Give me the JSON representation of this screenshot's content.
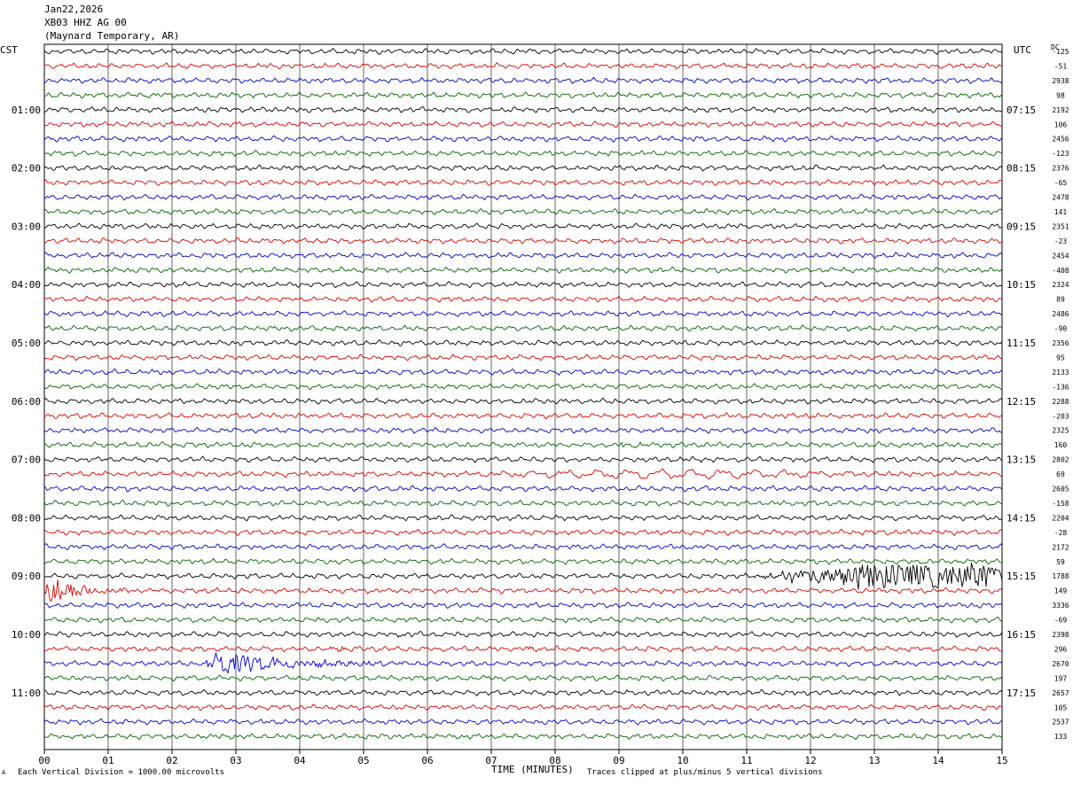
{
  "header": {
    "date": "Jan22,2026",
    "station": "XB03 HHZ AG 00",
    "location": "(Maynard Temporary, AR)"
  },
  "left_timezone": "CST",
  "right_timezone": "UTC",
  "dc_header": "DC",
  "footer": {
    "scale_note": "Each Vertical Division = 1000.00 microvolts",
    "clip_note": "Traces clipped at plus/minus 5 vertical divisions",
    "corner_mark": "A"
  },
  "colors": {
    "cycle": [
      "#000000",
      "#dd0000",
      "#0000cc",
      "#006600"
    ],
    "grid": "#000000",
    "background": "#ffffff"
  },
  "chart_data": {
    "type": "line",
    "title": "",
    "xlabel": "TIME (MINUTES)",
    "ylabel": "",
    "xlim": [
      0,
      15
    ],
    "x_ticks": [
      "00",
      "01",
      "02",
      "03",
      "04",
      "05",
      "06",
      "07",
      "08",
      "09",
      "10",
      "11",
      "12",
      "13",
      "14",
      "15"
    ],
    "grid": true,
    "trace_count": 48,
    "left_hour_labels": [
      "01:00",
      "02:00",
      "03:00",
      "04:00",
      "05:00",
      "06:00",
      "07:00",
      "08:00",
      "09:00",
      "10:00",
      "11:00"
    ],
    "right_hour_labels": [
      "07:15",
      "08:15",
      "09:15",
      "10:15",
      "11:15",
      "12:15",
      "13:15",
      "14:15",
      "15:15",
      "16:15",
      "17:15"
    ],
    "dc_offsets": [
      "-125",
      "-51",
      "2938",
      "98",
      "2192",
      "106",
      "2456",
      "-123",
      "2376",
      "-65",
      "2478",
      "141",
      "2351",
      "-23",
      "2454",
      "-408",
      "2324",
      "89",
      "2486",
      "-90",
      "2356",
      "95",
      "2133",
      "-136",
      "2288",
      "-203",
      "2325",
      "160",
      "2802",
      "69",
      "2605",
      "-158",
      "2204",
      "-28",
      "2172",
      "59",
      "1788",
      "149",
      "3336",
      "-69",
      "2398",
      "296",
      "2670",
      "197",
      "2657",
      "105",
      "2537",
      "133"
    ],
    "events": [
      {
        "trace": 27,
        "start_min": 9.0,
        "end_min": 10.0,
        "amplitude_div": 1.3,
        "kind": "local"
      },
      {
        "trace": 29,
        "start_min": 6.3,
        "end_min": 15.0,
        "amplitude_div": 1.3,
        "kind": "surface-wave"
      },
      {
        "trace": 30,
        "start_min": 4.8,
        "end_min": 5.4,
        "amplitude_div": 0.8,
        "kind": "local"
      },
      {
        "trace": 37,
        "start_min": 0.0,
        "end_min": 2.0,
        "amplitude_div": 5.0,
        "kind": "teleseism"
      },
      {
        "trace": 36,
        "start_min": 11.0,
        "end_min": 15.0,
        "amplitude_div": 5.0,
        "kind": "noise-burst"
      },
      {
        "trace": 40,
        "start_min": 5.5,
        "end_min": 6.3,
        "amplitude_div": 1.0,
        "kind": "local"
      },
      {
        "trace": 41,
        "start_min": 4.3,
        "end_min": 6.0,
        "amplitude_div": 0.8,
        "kind": "local"
      },
      {
        "trace": 41,
        "start_min": 7.5,
        "end_min": 8.2,
        "amplitude_div": 0.8,
        "kind": "local"
      },
      {
        "trace": 42,
        "start_min": 2.5,
        "end_min": 7.0,
        "amplitude_div": 5.0,
        "kind": "regional"
      }
    ]
  }
}
